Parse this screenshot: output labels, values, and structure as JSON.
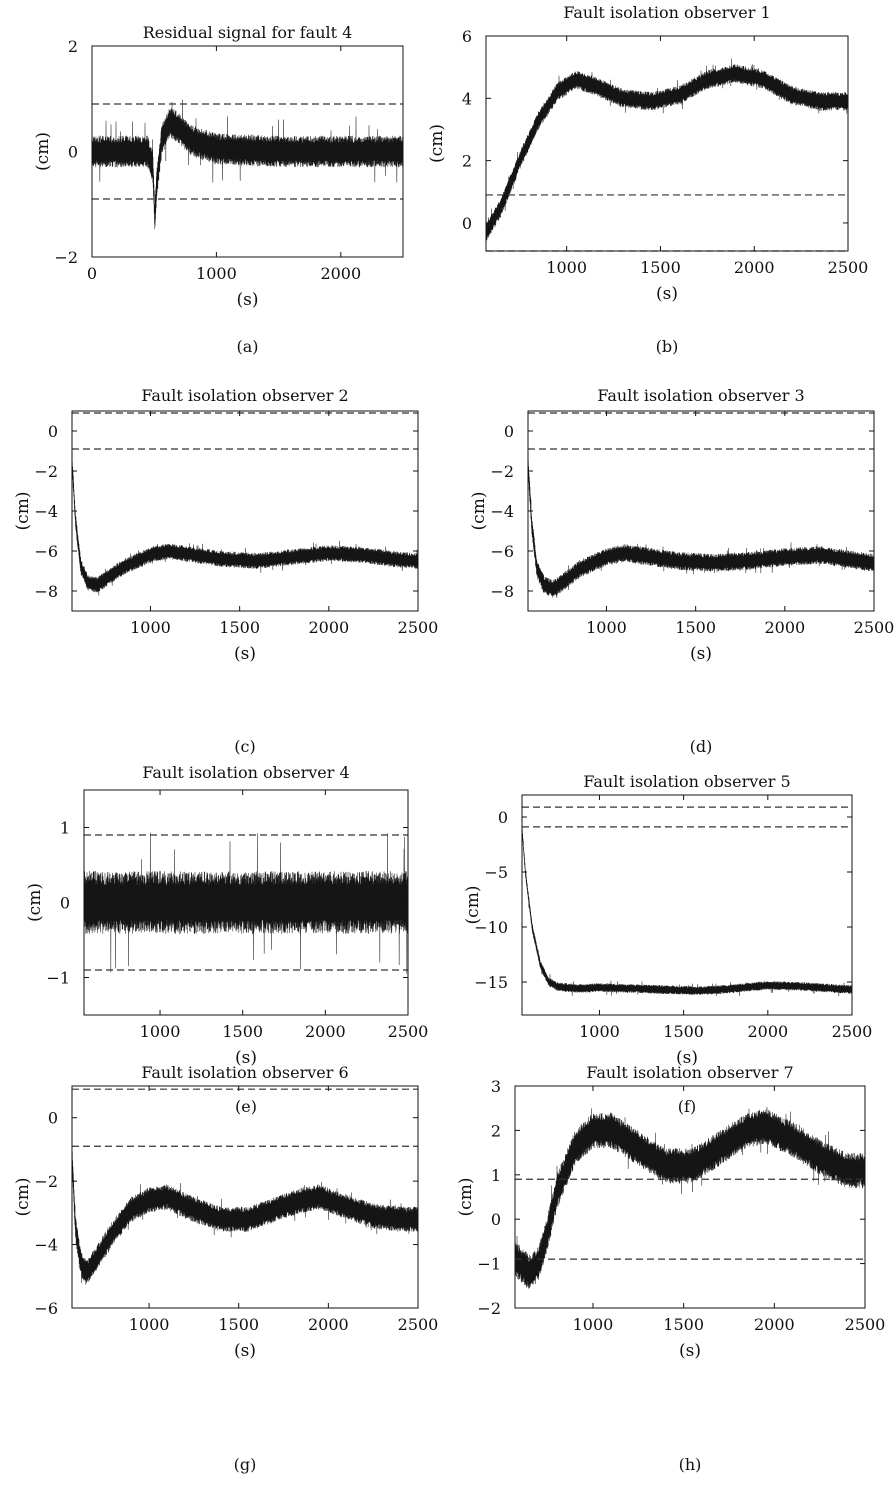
{
  "chart_data": [
    {
      "id": "a",
      "type": "line",
      "panel_label": "(a)",
      "title": "Residual signal for fault 4",
      "xlabel": "(s)",
      "ylabel": "(cm)",
      "xlim": [
        0,
        2500
      ],
      "ylim": [
        -2,
        2
      ],
      "xticks": [
        0,
        1000,
        2000
      ],
      "yticks": [
        -2,
        0,
        2
      ],
      "thresholds": [
        0.9,
        -0.9
      ],
      "series": [
        {
          "noise": 0.3,
          "spike_noise": 0.2,
          "x": [
            0,
            450,
            490,
            505,
            520,
            560,
            620,
            700,
            800,
            1000,
            1500,
            2000,
            2500
          ],
          "y": [
            0,
            0,
            -0.3,
            -1.3,
            -0.6,
            0.2,
            0.55,
            0.45,
            0.2,
            0.05,
            0,
            0,
            0
          ]
        }
      ]
    },
    {
      "id": "b",
      "type": "line",
      "panel_label": "(b)",
      "title": "Fault isolation observer 1",
      "xlabel": "(s)",
      "ylabel": "(cm)",
      "xlim": [
        570,
        2500
      ],
      "ylim": [
        -0.9,
        6
      ],
      "xticks": [
        1000,
        1500,
        2000,
        2500
      ],
      "yticks": [
        0,
        2,
        4,
        6
      ],
      "thresholds": [
        0.9,
        -0.9
      ],
      "series": [
        {
          "noise": 0.3,
          "spike_noise": 0.12,
          "x": [
            570,
            650,
            750,
            850,
            950,
            1050,
            1150,
            1300,
            1450,
            1600,
            1750,
            1900,
            2050,
            2200,
            2350,
            2500
          ],
          "y": [
            -0.3,
            0.5,
            2.0,
            3.3,
            4.2,
            4.6,
            4.4,
            4.0,
            3.9,
            4.1,
            4.6,
            4.8,
            4.6,
            4.1,
            3.9,
            3.9
          ]
        }
      ]
    },
    {
      "id": "c",
      "type": "line",
      "panel_label": "(c)",
      "title": "Fault isolation observer 2",
      "xlabel": "(s)",
      "ylabel": "(cm)",
      "xlim": [
        560,
        2500
      ],
      "ylim": [
        -9,
        1
      ],
      "xticks": [
        1000,
        1500,
        2000,
        2500
      ],
      "yticks": [
        -8,
        -6,
        -4,
        -2,
        0
      ],
      "thresholds": [
        0.9,
        -0.9
      ],
      "series": [
        {
          "noise": 0.4,
          "spike_noise": 0.15,
          "x": [
            560,
            580,
            610,
            650,
            700,
            750,
            850,
            1000,
            1100,
            1250,
            1400,
            1600,
            1800,
            2000,
            2200,
            2350,
            2500
          ],
          "y": [
            -1.5,
            -4.5,
            -6.8,
            -7.6,
            -7.7,
            -7.4,
            -6.8,
            -6.2,
            -6.0,
            -6.2,
            -6.4,
            -6.5,
            -6.3,
            -6.1,
            -6.2,
            -6.4,
            -6.5
          ]
        }
      ]
    },
    {
      "id": "d",
      "type": "line",
      "panel_label": "(d)",
      "title": "Fault isolation observer 3",
      "xlabel": "(s)",
      "ylabel": "(cm)",
      "xlim": [
        560,
        2500
      ],
      "ylim": [
        -9,
        1
      ],
      "xticks": [
        1000,
        1500,
        2000,
        2500
      ],
      "yticks": [
        -8,
        -6,
        -4,
        -2,
        0
      ],
      "thresholds": [
        0.9,
        -0.9
      ],
      "series": [
        {
          "noise": 0.45,
          "spike_noise": 0.15,
          "x": [
            560,
            580,
            610,
            650,
            700,
            750,
            850,
            1000,
            1100,
            1250,
            1400,
            1600,
            1800,
            2000,
            2200,
            2350,
            2500
          ],
          "y": [
            -1.5,
            -4.6,
            -6.9,
            -7.7,
            -7.9,
            -7.6,
            -6.9,
            -6.3,
            -6.1,
            -6.3,
            -6.5,
            -6.6,
            -6.5,
            -6.3,
            -6.2,
            -6.4,
            -6.6
          ]
        }
      ]
    },
    {
      "id": "e",
      "type": "line",
      "panel_label": "(e)",
      "title": "Fault isolation observer 4",
      "xlabel": "(s)",
      "ylabel": "(cm)",
      "xlim": [
        540,
        2500
      ],
      "ylim": [
        -1.5,
        1.5
      ],
      "xticks": [
        1000,
        1500,
        2000,
        2500
      ],
      "yticks": [
        -1,
        0,
        1
      ],
      "thresholds": [
        0.9,
        -0.9
      ],
      "series": [
        {
          "noise": 0.42,
          "spike_noise": 0.3,
          "x": [
            540,
            2500
          ],
          "y": [
            0,
            0
          ]
        }
      ]
    },
    {
      "id": "f",
      "type": "line",
      "panel_label": "(f)",
      "title": "Fault isolation observer 5",
      "xlabel": "(s)",
      "ylabel": "(cm)",
      "xlim": [
        540,
        2500
      ],
      "ylim": [
        -18,
        2
      ],
      "xticks": [
        1000,
        1500,
        2000,
        2500
      ],
      "yticks": [
        -15,
        -10,
        -5,
        0
      ],
      "thresholds": [
        0.9,
        -0.9
      ],
      "series": [
        {
          "noise": 0.4,
          "spike_noise": 0.2,
          "x": [
            540,
            560,
            600,
            650,
            700,
            750,
            800,
            900,
            1000,
            1200,
            1400,
            1600,
            1800,
            2000,
            2200,
            2400,
            2500
          ],
          "y": [
            -1,
            -5,
            -10,
            -13.5,
            -15,
            -15.4,
            -15.5,
            -15.6,
            -15.5,
            -15.6,
            -15.7,
            -15.8,
            -15.6,
            -15.3,
            -15.4,
            -15.6,
            -15.7
          ]
        }
      ]
    },
    {
      "id": "g",
      "type": "line",
      "panel_label": "(g)",
      "title": "Fault isolation observer 6",
      "xlabel": "(s)",
      "ylabel": "(cm)",
      "xlim": [
        570,
        2500
      ],
      "ylim": [
        -6,
        1
      ],
      "xticks": [
        1000,
        1500,
        2000,
        2500
      ],
      "yticks": [
        -6,
        -4,
        -2,
        0
      ],
      "thresholds": [
        0.9,
        -0.9
      ],
      "series": [
        {
          "noise": 0.4,
          "spike_noise": 0.15,
          "x": [
            570,
            590,
            620,
            650,
            700,
            800,
            900,
            1000,
            1100,
            1250,
            1400,
            1550,
            1700,
            1850,
            1950,
            2100,
            2250,
            2400,
            2500
          ],
          "y": [
            -1.2,
            -3.5,
            -4.6,
            -4.9,
            -4.5,
            -3.6,
            -2.9,
            -2.6,
            -2.5,
            -2.9,
            -3.2,
            -3.2,
            -2.9,
            -2.6,
            -2.5,
            -2.8,
            -3.1,
            -3.2,
            -3.2
          ]
        }
      ]
    },
    {
      "id": "h",
      "type": "line",
      "panel_label": "(h)",
      "title": "Fault isolation observer 7",
      "xlabel": "(s)",
      "ylabel": "(cm)",
      "xlim": [
        570,
        2500
      ],
      "ylim": [
        -2,
        3
      ],
      "xticks": [
        1000,
        1500,
        2000,
        2500
      ],
      "yticks": [
        -2,
        -1,
        0,
        1,
        2,
        3
      ],
      "thresholds": [
        0.9,
        -0.9
      ],
      "series": [
        {
          "noise": 0.4,
          "spike_noise": 0.15,
          "x": [
            570,
            600,
            650,
            700,
            750,
            800,
            900,
            1000,
            1100,
            1250,
            1400,
            1550,
            1700,
            1850,
            1950,
            2100,
            2250,
            2400,
            2500
          ],
          "y": [
            -0.9,
            -1.0,
            -1.2,
            -1.0,
            -0.3,
            0.6,
            1.6,
            2.0,
            2.0,
            1.6,
            1.2,
            1.2,
            1.6,
            2.0,
            2.1,
            1.8,
            1.4,
            1.1,
            1.1
          ]
        }
      ]
    }
  ]
}
